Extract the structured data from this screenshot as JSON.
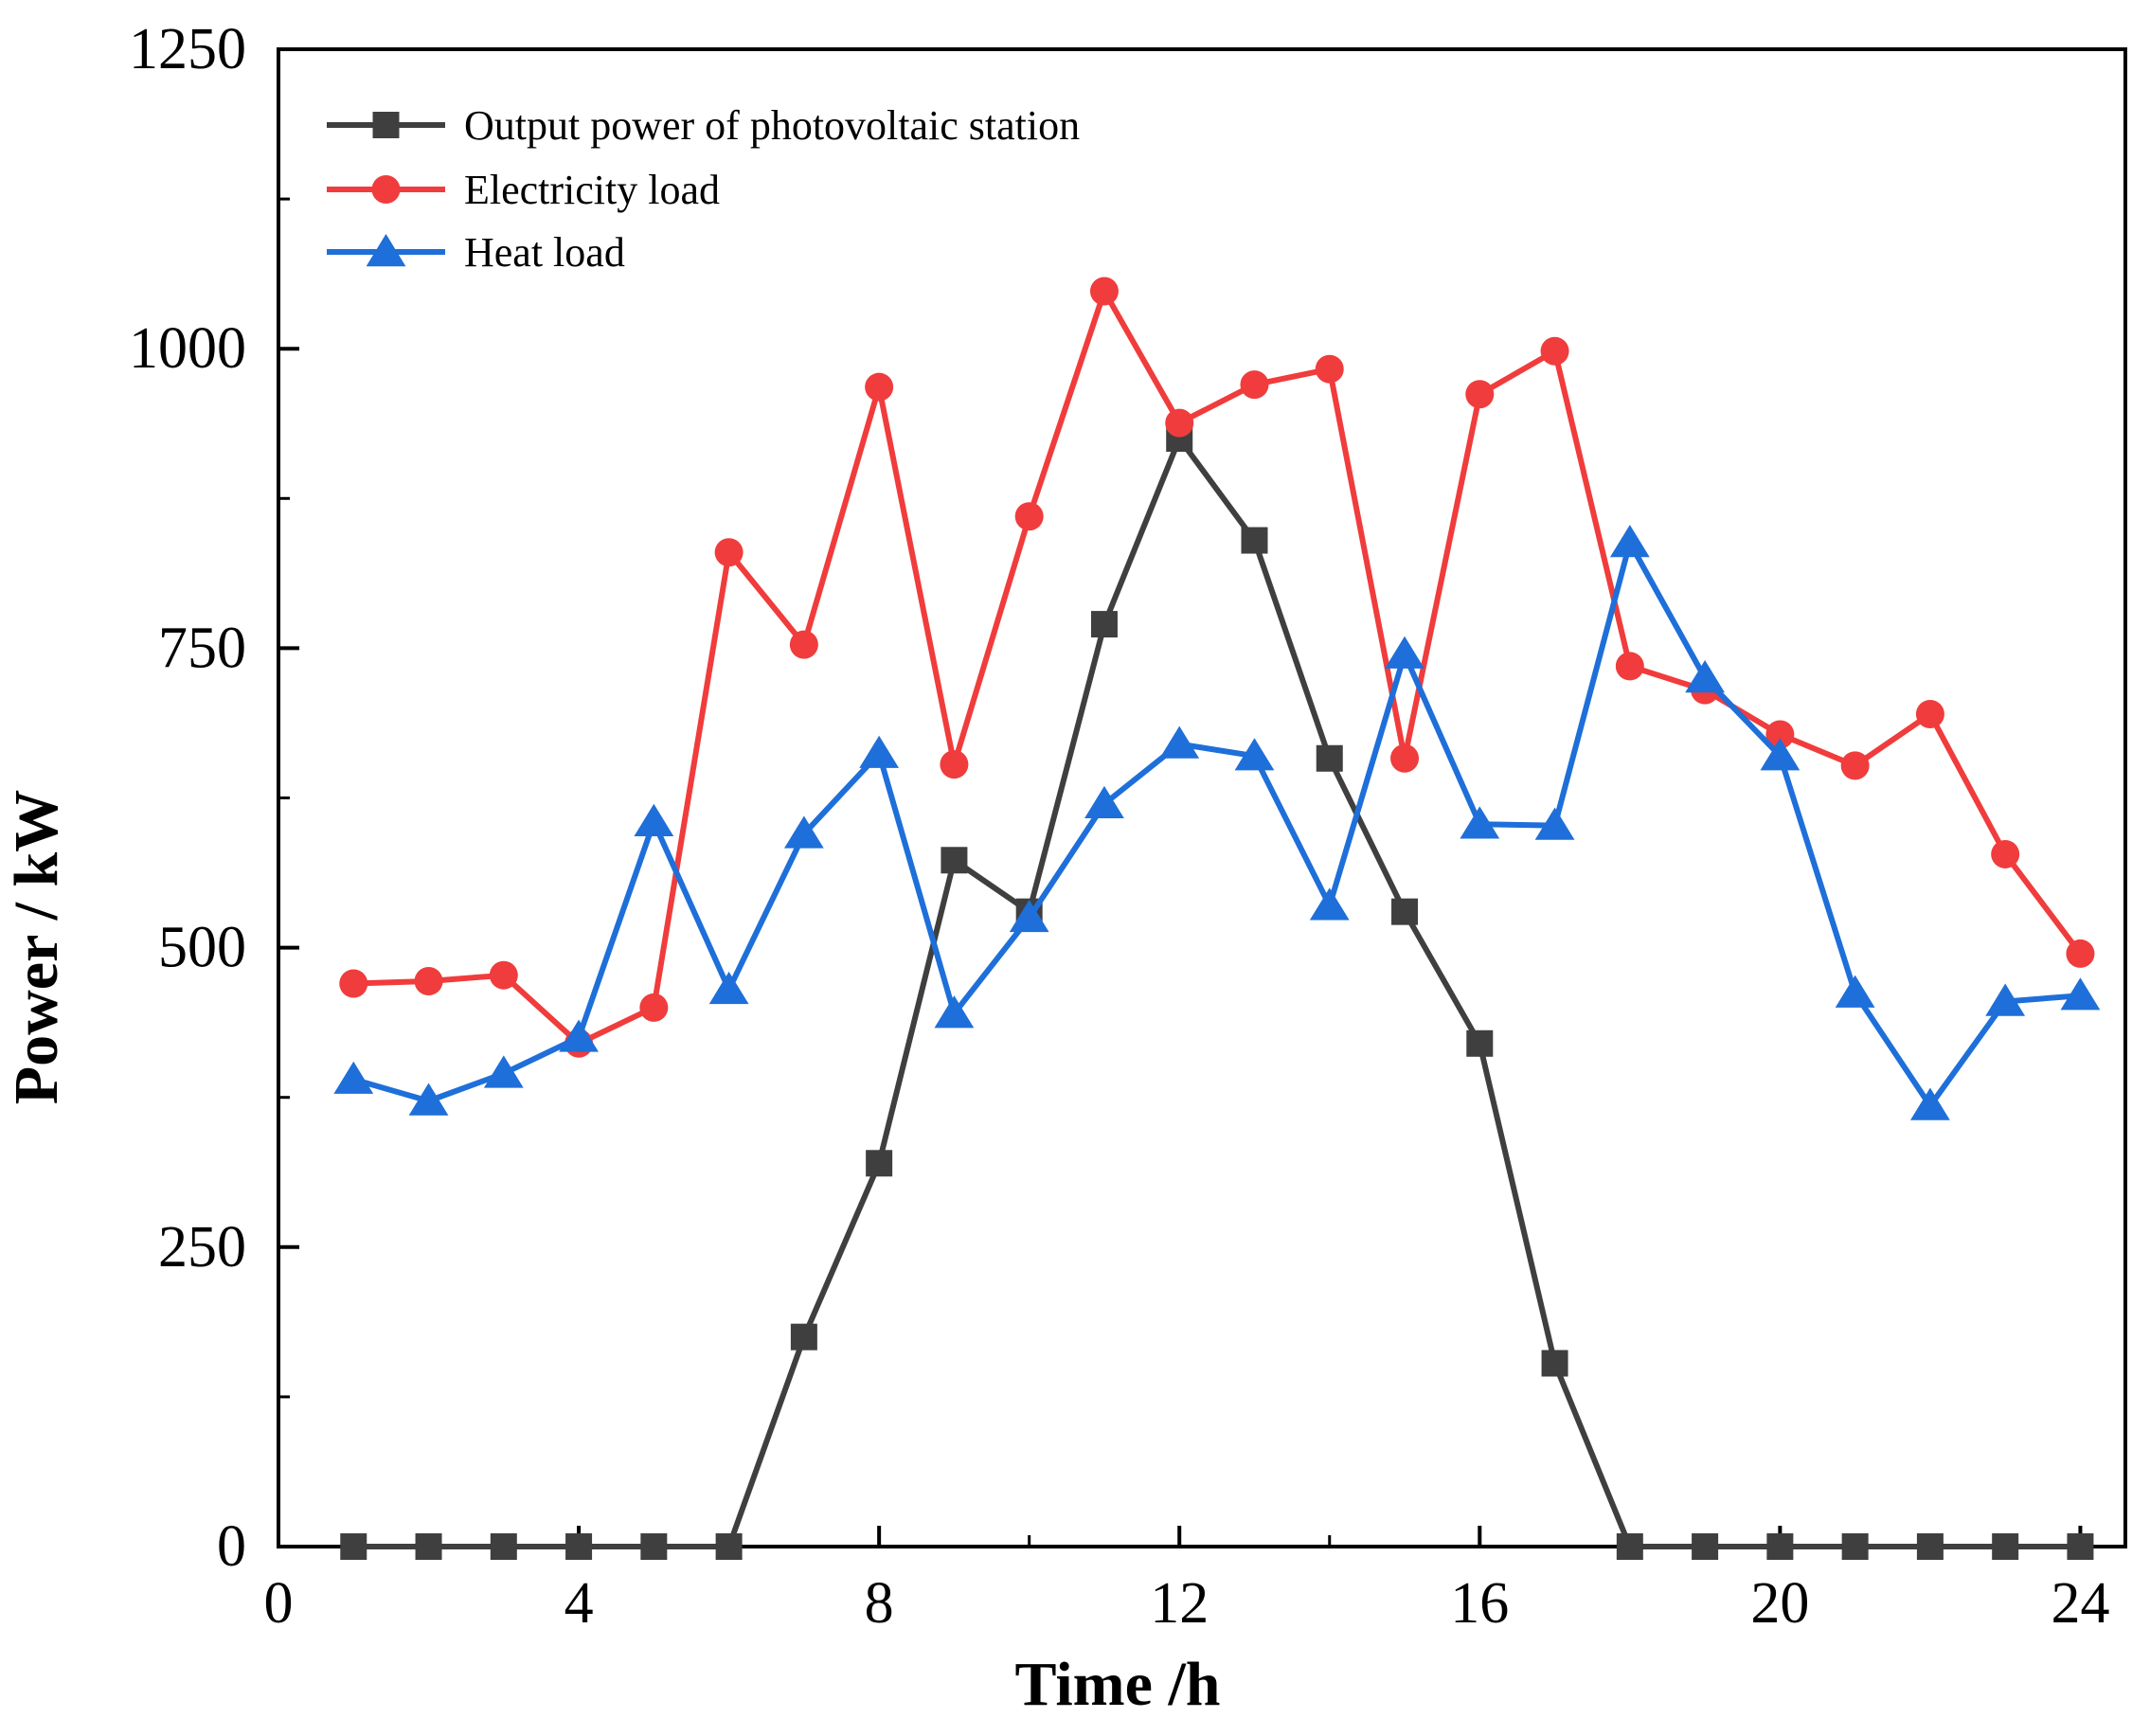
{
  "chart_data": {
    "type": "line",
    "title": "",
    "xlabel": "Time /h",
    "ylabel": "Power / kW",
    "xlim": [
      0,
      24.6
    ],
    "ylim": [
      0,
      1250
    ],
    "xticks": [
      0,
      4,
      8,
      12,
      16,
      20,
      24
    ],
    "xtick_labels": [
      "0",
      "4",
      "8",
      "12",
      "16",
      "20",
      "24"
    ],
    "yticks": [
      0,
      250,
      500,
      750,
      1000,
      1250
    ],
    "ytick_labels": [
      "0",
      "250",
      "500",
      "750",
      "1000",
      "1250"
    ],
    "grid": false,
    "legend_position": "top-left",
    "x": [
      1,
      2,
      3,
      4,
      5,
      6,
      7,
      8,
      9,
      10,
      11,
      12,
      13,
      14,
      15,
      16,
      17,
      18,
      19,
      20,
      21,
      22,
      23,
      24
    ],
    "series": [
      {
        "name": "Output power of photovoltaic station",
        "color": "#3f3f3f",
        "marker": "square",
        "values": [
          0,
          0,
          0,
          0,
          0,
          0,
          175,
          320,
          573,
          530,
          770,
          925,
          840,
          658,
          530,
          420,
          153,
          0,
          0,
          0,
          0,
          0,
          0,
          0
        ]
      },
      {
        "name": "Electricity load",
        "color": "#f03c3c",
        "marker": "circle",
        "values": [
          470,
          472,
          477,
          420,
          450,
          830,
          753,
          968,
          653,
          860,
          1048,
          938,
          970,
          983,
          658,
          962,
          998,
          735,
          715,
          678,
          652,
          695,
          578,
          495
        ]
      },
      {
        "name": "Heat load",
        "color": "#1e6fd9",
        "marker": "triangle",
        "values": [
          390,
          372,
          395,
          425,
          605,
          465,
          595,
          662,
          445,
          525,
          620,
          670,
          660,
          535,
          745,
          603,
          602,
          838,
          725,
          660,
          462,
          368,
          455,
          460
        ]
      }
    ]
  }
}
